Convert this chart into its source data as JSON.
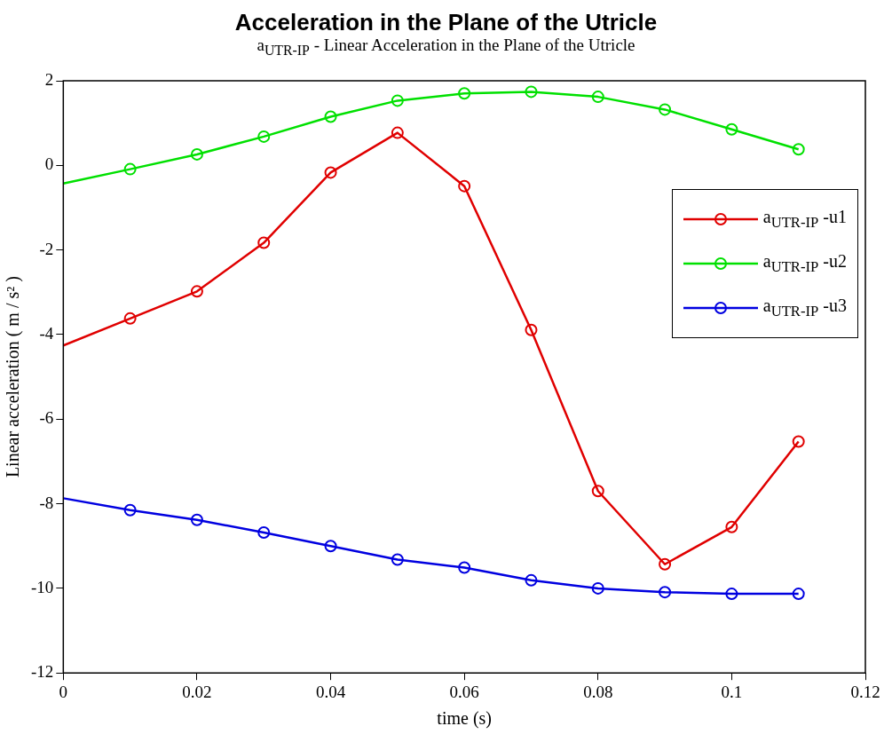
{
  "chart_data": {
    "type": "line",
    "title": "Acceleration in the Plane of the Utricle",
    "subtitle": "a$_{UTR-IP}$ - Linear Acceleration in the Plane of the Utricle",
    "xlabel": "time (s)",
    "ylabel": "Linear acceleration ( m / s² )",
    "x": [
      0,
      0.01,
      0.02,
      0.03,
      0.04,
      0.05,
      0.06,
      0.07,
      0.08,
      0.09,
      0.1,
      0.11
    ],
    "series": [
      {
        "name": "a$_{UTR-IP}$ -u1",
        "color": "#e00000",
        "values": [
          -4.26,
          -3.62,
          -2.98,
          -1.83,
          -0.17,
          0.77,
          -0.49,
          -3.89,
          -7.7,
          -9.43,
          -8.55,
          -6.53
        ]
      },
      {
        "name": "a$_{UTR-IP}$ -u2",
        "color": "#00e000",
        "values": [
          -0.43,
          -0.09,
          0.26,
          0.68,
          1.15,
          1.53,
          1.7,
          1.74,
          1.62,
          1.32,
          0.85,
          0.38
        ]
      },
      {
        "name": "a$_{UTR-IP}$ -u3",
        "color": "#0000e0",
        "values": [
          -7.87,
          -8.15,
          -8.38,
          -8.68,
          -9.0,
          -9.32,
          -9.51,
          -9.81,
          -10.0,
          -10.09,
          -10.13,
          -10.13
        ]
      }
    ],
    "xlim": [
      0,
      0.12
    ],
    "xticks": [
      0,
      0.02,
      0.04,
      0.06,
      0.08,
      0.1,
      0.12
    ],
    "ylim": [
      -12,
      2
    ],
    "yticks": [
      -12,
      -10,
      -8,
      -6,
      -4,
      -2,
      0,
      2
    ],
    "grid": false,
    "legend": "right",
    "marker": "circle",
    "line_style": "solid"
  }
}
